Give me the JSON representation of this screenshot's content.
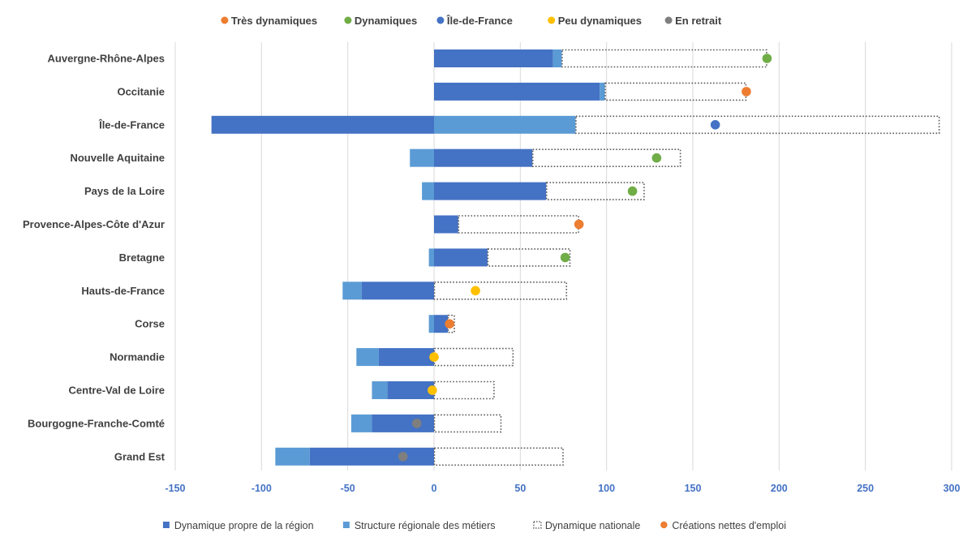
{
  "colors": {
    "own_dynamic": "#4472C4",
    "structure": "#5B9BD5",
    "national": "#595959",
    "tres_dynamiques": "#ED7D31",
    "dynamiques": "#70AD47",
    "ile_de_france": "#4472C4",
    "peu_dynamiques": "#FFC000",
    "en_retrait": "#7F7F7F",
    "grid": "#D9D9D9",
    "tick": "#4472C4"
  },
  "chart_data": {
    "type": "bar",
    "orientation": "horizontal",
    "stacked": true,
    "xlim": [
      -150,
      300
    ],
    "x_ticks": [
      -150,
      -100,
      -50,
      0,
      50,
      100,
      150,
      200,
      250,
      300
    ],
    "grid": true,
    "legend_top": [
      {
        "name": "Très dynamiques",
        "color": "#ED7D31"
      },
      {
        "name": "Dynamiques",
        "color": "#70AD47"
      },
      {
        "name": "Île-de-France",
        "color": "#4472C4"
      },
      {
        "name": "Peu dynamiques",
        "color": "#FFC000"
      },
      {
        "name": "En retrait",
        "color": "#7F7F7F"
      }
    ],
    "legend_bottom": [
      {
        "name": "Dynamique propre de la région",
        "kind": "bar",
        "color": "#4472C4"
      },
      {
        "name": "Structure régionale des métiers",
        "kind": "bar",
        "color": "#5B9BD5"
      },
      {
        "name": "Dynamique nationale",
        "kind": "dotted",
        "color": "#595959"
      },
      {
        "name": "Créations nettes d'emploi",
        "kind": "dot",
        "color": "#ED7D31"
      }
    ],
    "regions": [
      {
        "name": "Auvergne-Rhône-Alpes",
        "propre": 69,
        "structure": 5,
        "nationale": 119,
        "creations": 193,
        "group": "tres_dynamiques",
        "marker": "dynamiques"
      },
      {
        "name": "Occitanie",
        "propre": 96,
        "structure": 3,
        "nationale": 82,
        "creations": 181,
        "group": "tres_dynamiques",
        "marker": "tres_dynamiques"
      },
      {
        "name": "Île-de-France",
        "propre": -129,
        "structure": 82,
        "nationale": 211,
        "creations": 163,
        "group": "ile_de_france",
        "marker": "ile_de_france"
      },
      {
        "name": "Nouvelle Aquitaine",
        "propre": 57,
        "structure": -14,
        "nationale": 86,
        "creations": 129,
        "group": "dynamiques",
        "marker": "dynamiques"
      },
      {
        "name": "Pays de la Loire",
        "propre": 65,
        "structure": -7,
        "nationale": 57,
        "creations": 115,
        "group": "dynamiques",
        "marker": "dynamiques"
      },
      {
        "name": "Provence-Alpes-Côte d'Azur",
        "propre": 14,
        "structure": 0,
        "nationale": 70,
        "creations": 84,
        "group": "tres_dynamiques",
        "marker": "tres_dynamiques"
      },
      {
        "name": "Bretagne",
        "propre": 31,
        "structure": -3,
        "nationale": 48,
        "creations": 76,
        "group": "dynamiques",
        "marker": "dynamiques"
      },
      {
        "name": "Hauts-de-France",
        "propre": -42,
        "structure": -11,
        "nationale": 77,
        "creations": 24,
        "group": "peu_dynamiques",
        "marker": "peu_dynamiques"
      },
      {
        "name": "Corse",
        "propre": 8,
        "structure": -3,
        "nationale": 4,
        "creations": 9,
        "group": "tres_dynamiques",
        "marker": "tres_dynamiques"
      },
      {
        "name": "Normandie",
        "propre": -32,
        "structure": -13,
        "nationale": 46,
        "creations": 0,
        "group": "peu_dynamiques",
        "marker": "peu_dynamiques"
      },
      {
        "name": "Centre-Val de Loire",
        "propre": -27,
        "structure": -9,
        "nationale": 35,
        "creations": -1,
        "group": "peu_dynamiques",
        "marker": "peu_dynamiques"
      },
      {
        "name": "Bourgogne-Franche-Comté",
        "propre": -36,
        "structure": -12,
        "nationale": 39,
        "creations": -10,
        "group": "en_retrait",
        "marker": "en_retrait"
      },
      {
        "name": "Grand Est",
        "propre": -72,
        "structure": -20,
        "nationale": 75,
        "creations": -18,
        "group": "en_retrait",
        "marker": "en_retrait"
      }
    ]
  }
}
